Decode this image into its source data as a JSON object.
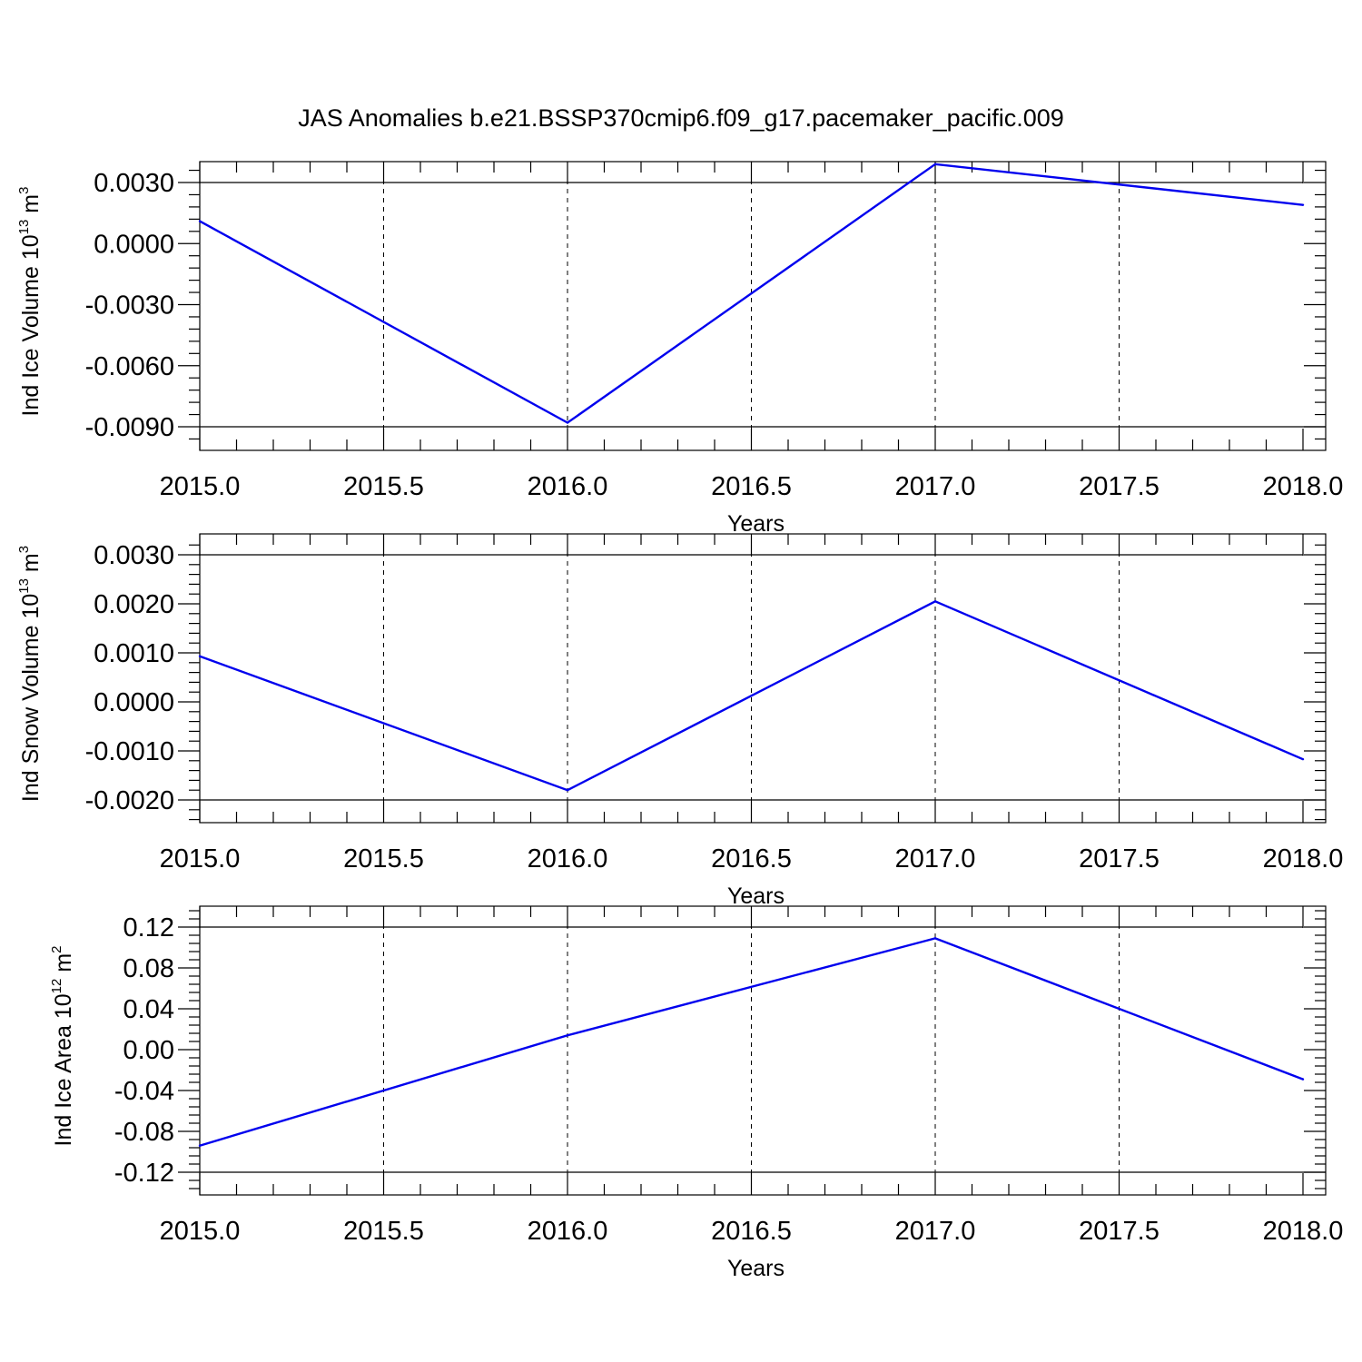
{
  "title": "JAS Anomalies b.e21.BSSP370cmip6.f09_g17.pacemaker_pacific.009",
  "chart_data": [
    {
      "type": "line",
      "ylabel": {
        "text": "Ind Ice Volume 10",
        "exponent": "13",
        "unit": " m",
        "unit_exponent": "3"
      },
      "xlabel": "Years",
      "x": [
        2015,
        2016,
        2017,
        2018
      ],
      "values": [
        0.0011,
        -0.0088,
        0.0039,
        0.0019
      ],
      "xlim": [
        2015,
        2018
      ],
      "ylim": [
        -0.009,
        0.004
      ],
      "xticks": [
        2015.0,
        2015.5,
        2016.0,
        2016.5,
        2017.0,
        2017.5,
        2018.0
      ],
      "xtick_labels": [
        "2015.0",
        "2015.5",
        "2016.0",
        "2016.5",
        "2017.0",
        "2017.5",
        "2018.0"
      ],
      "yticks": [
        0.003,
        0.0,
        -0.003,
        -0.006,
        -0.009
      ],
      "ytick_labels": [
        "0.0030",
        "0.0000",
        "-0.0030",
        "-0.0060",
        "-0.0090"
      ],
      "grid": "vertical dashed",
      "color": "#0000ee"
    },
    {
      "type": "line",
      "ylabel": {
        "text": "Ind Snow Volume 10",
        "exponent": "13",
        "unit": " m",
        "unit_exponent": "3"
      },
      "xlabel": "Years",
      "x": [
        2015,
        2016,
        2017,
        2018
      ],
      "values": [
        0.00093,
        -0.0018,
        0.00205,
        -0.00117
      ],
      "xlim": [
        2015,
        2018
      ],
      "ylim": [
        -0.002,
        0.003
      ],
      "xticks": [
        2015.0,
        2015.5,
        2016.0,
        2016.5,
        2017.0,
        2017.5,
        2018.0
      ],
      "xtick_labels": [
        "2015.0",
        "2015.5",
        "2016.0",
        "2016.5",
        "2017.0",
        "2017.5",
        "2018.0"
      ],
      "yticks": [
        0.003,
        0.002,
        0.001,
        0.0,
        -0.001,
        -0.002
      ],
      "ytick_labels": [
        "0.0030",
        "0.0020",
        "0.0010",
        "0.0000",
        "-0.0010",
        "-0.0020"
      ],
      "grid": "vertical dashed",
      "color": "#0000ee"
    },
    {
      "type": "line",
      "ylabel": {
        "text": "Ind Ice Area 10",
        "exponent": "12",
        "unit": " m",
        "unit_exponent": "2"
      },
      "xlabel": "Years",
      "x": [
        2015,
        2016,
        2017,
        2018
      ],
      "values": [
        -0.094,
        0.014,
        0.109,
        -0.029
      ],
      "xlim": [
        2015,
        2018
      ],
      "ylim": [
        -0.12,
        0.12
      ],
      "xticks": [
        2015.0,
        2015.5,
        2016.0,
        2016.5,
        2017.0,
        2017.5,
        2018.0
      ],
      "xtick_labels": [
        "2015.0",
        "2015.5",
        "2016.0",
        "2016.5",
        "2017.0",
        "2017.5",
        "2018.0"
      ],
      "yticks": [
        0.12,
        0.08,
        0.04,
        0.0,
        -0.04,
        -0.08,
        -0.12
      ],
      "ytick_labels": [
        "0.12",
        "0.08",
        "0.04",
        "0.00",
        "-0.04",
        "-0.08",
        "-0.12"
      ],
      "grid": "vertical dashed",
      "color": "#0000ee"
    }
  ]
}
